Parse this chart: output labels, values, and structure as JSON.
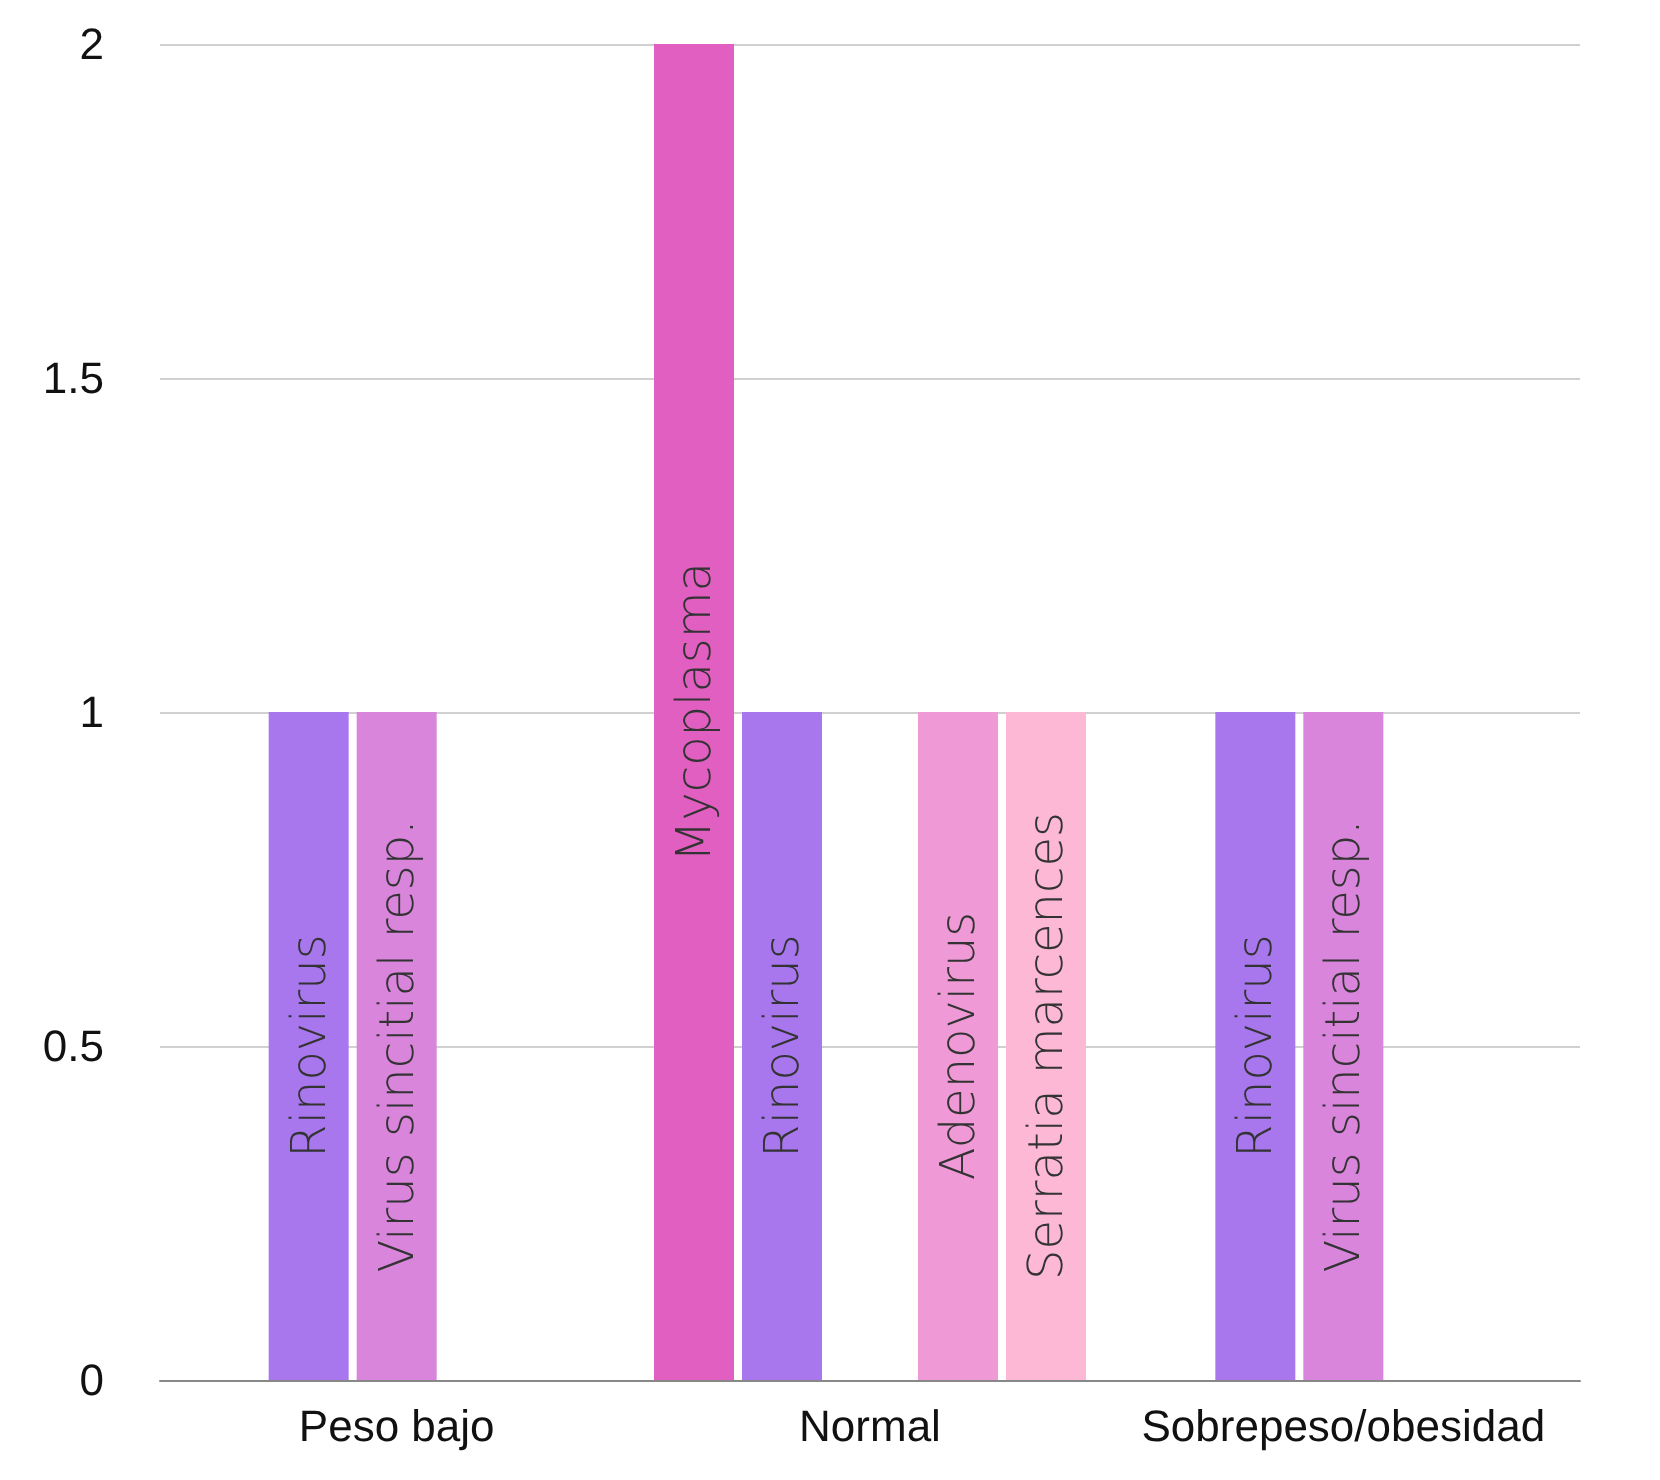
{
  "chart_data": {
    "type": "bar",
    "categories": [
      "Peso bajo",
      "Normal",
      "Sobrepeso/obesidad"
    ],
    "series": [
      {
        "name": "Mycoplasma",
        "color": "#e05fc0",
        "values": [
          null,
          2,
          null
        ]
      },
      {
        "name": "Rinovirus",
        "color": "#a877ee",
        "values": [
          1,
          1,
          1
        ]
      },
      {
        "name": "Virus sincitial resp.",
        "color": "#d985dc",
        "values": [
          1,
          null,
          1
        ]
      },
      {
        "name": "Adenovirus",
        "color": "#ef9ad6",
        "values": [
          null,
          1,
          null
        ]
      },
      {
        "name": "Serratia marcences",
        "color": "#fdb8d6",
        "values": [
          null,
          1,
          null
        ]
      }
    ],
    "ylim": [
      0,
      2
    ],
    "yticks": [
      0,
      0.5,
      1,
      1.5,
      2
    ],
    "grid": "y",
    "legend": false
  }
}
